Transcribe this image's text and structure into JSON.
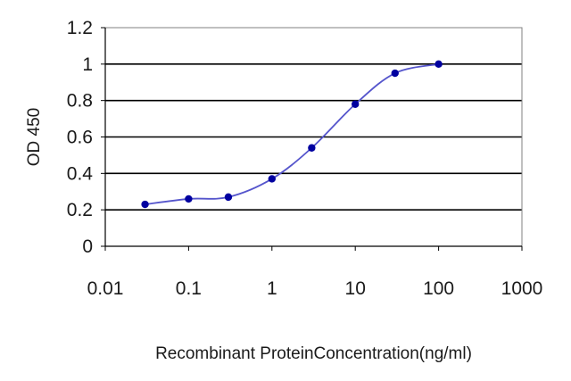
{
  "chart_data": {
    "type": "line",
    "title": "",
    "xlabel": "Recombinant ProteinConcentration(ng/ml)",
    "ylabel": "OD 450",
    "x_scale": "log",
    "xlim": [
      0.01,
      1000
    ],
    "ylim": [
      0,
      1.2
    ],
    "x_ticks": [
      "0.01",
      "0.1",
      "1",
      "10",
      "100",
      "1000"
    ],
    "y_ticks": [
      "0",
      "0.2",
      "0.4",
      "0.6",
      "0.8",
      "1",
      "1.2"
    ],
    "grid": "horizontal",
    "legend": "none",
    "series": [
      {
        "x": [
          0.03,
          0.1,
          0.3,
          1,
          3,
          10,
          30,
          100
        ],
        "y": [
          0.23,
          0.26,
          0.27,
          0.37,
          0.54,
          0.78,
          0.95,
          1.0
        ],
        "color": "#0000a0"
      }
    ],
    "colors": {
      "plot_background": "#ffffff",
      "gridline": "#000000",
      "line": "#5555cc",
      "marker": "#0000a0"
    }
  }
}
